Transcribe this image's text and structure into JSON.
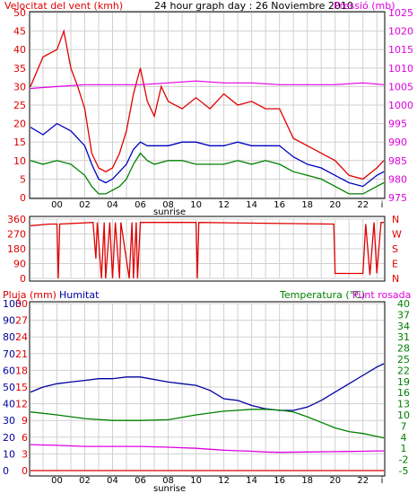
{
  "header": {
    "wind_label": "Velocitat del vent (kmh)",
    "title": "24 hour graph day : 26 Noviembre 2010",
    "pressure_label": "Pressió (mb)"
  },
  "bottom_header": {
    "rain_label": "Pluja (mm)",
    "humidity_label": "Humitat",
    "temp_label": "Temperatura (°C)",
    "dew_label": "Punt rosada"
  },
  "time_axis": {
    "ticks": [
      "00",
      "02",
      "04",
      "06",
      "08",
      "10",
      "12",
      "14",
      "16",
      "18",
      "20",
      "22"
    ],
    "sunrise_label": "sunrise"
  },
  "colors": {
    "wind_gust": "#e00000",
    "wind_avg": "#0000c0",
    "wind_low": "#008000",
    "pressure": "#e000e0",
    "direction": "#e00000",
    "humidity": "#0000a0",
    "temperature": "#008000",
    "dew_point": "#e000e0",
    "rain": "#e00000"
  },
  "chart_data": [
    {
      "type": "line",
      "title": "24 hour graph day : 26 Noviembre 2010",
      "x_ticks": [
        "00",
        "02",
        "04",
        "06",
        "08",
        "10",
        "12",
        "14",
        "16",
        "18",
        "20",
        "22"
      ],
      "x_range": [
        -1.9,
        23.5
      ],
      "left_axis": {
        "label": "Velocitat del vent (kmh)",
        "ticks": [
          0,
          5,
          10,
          15,
          20,
          25,
          30,
          35,
          40,
          45,
          50
        ],
        "range": [
          0,
          50
        ]
      },
      "right_axis": {
        "label": "Pressió (mb)",
        "ticks": [
          975,
          980,
          985,
          990,
          995,
          1000,
          1005,
          1010,
          1015,
          1020,
          1025
        ],
        "range": [
          975,
          1025
        ]
      },
      "series": [
        {
          "name": "Velocitat del vent (kmh)",
          "axis": "left",
          "color": "#e00000",
          "x": [
            -1.9,
            -1,
            0,
            0.5,
            1,
            1.5,
            2,
            2.5,
            3,
            3.5,
            4,
            4.5,
            5,
            5.5,
            6,
            6.5,
            7,
            7.5,
            8,
            9,
            10,
            11,
            12,
            13,
            14,
            15,
            16,
            17,
            18,
            19,
            20,
            21,
            22,
            23,
            23.5
          ],
          "y": [
            30,
            38,
            40,
            45,
            35,
            30,
            24,
            12,
            8,
            7,
            8,
            12,
            18,
            28,
            35,
            26,
            22,
            30,
            26,
            24,
            27,
            24,
            28,
            25,
            26,
            24,
            24,
            16,
            14,
            12,
            10,
            6,
            5,
            8,
            10
          ]
        },
        {
          "name": "",
          "axis": "left",
          "color": "#0000c0",
          "x": [
            -1.9,
            -1,
            0,
            1,
            2,
            2.5,
            3,
            3.5,
            4,
            4.5,
            5,
            5.5,
            6,
            6.5,
            7,
            8,
            9,
            10,
            11,
            12,
            13,
            14,
            15,
            16,
            17,
            18,
            19,
            20,
            21,
            22,
            23,
            23.5
          ],
          "y": [
            19,
            17,
            20,
            18,
            14,
            9,
            5,
            4,
            5,
            7,
            9,
            13,
            15,
            14,
            14,
            14,
            15,
            15,
            14,
            14,
            15,
            14,
            14,
            14,
            11,
            9,
            8,
            6,
            4,
            3,
            6,
            7
          ]
        },
        {
          "name": "",
          "axis": "left",
          "color": "#008000",
          "x": [
            -1.9,
            -1,
            0,
            1,
            2,
            2.5,
            3,
            3.5,
            4,
            4.5,
            5,
            5.5,
            6,
            6.5,
            7,
            8,
            9,
            10,
            11,
            12,
            13,
            14,
            15,
            16,
            17,
            18,
            19,
            20,
            21,
            22,
            23,
            23.5
          ],
          "y": [
            10,
            9,
            10,
            9,
            6,
            3,
            1,
            1,
            2,
            3,
            5,
            9,
            12,
            10,
            9,
            10,
            10,
            9,
            9,
            9,
            10,
            9,
            10,
            9,
            7,
            6,
            5,
            3,
            1,
            1,
            3,
            4
          ]
        },
        {
          "name": "Pressió (mb)",
          "axis": "right",
          "color": "#e000e0",
          "x": [
            -1.9,
            0,
            2,
            4,
            6,
            8,
            10,
            12,
            14,
            16,
            18,
            20,
            22,
            23.5
          ],
          "y": [
            1004.5,
            1005,
            1005.5,
            1005.5,
            1005.5,
            1006,
            1006.5,
            1006,
            1006,
            1005.5,
            1005.5,
            1005.5,
            1006,
            1005.5
          ]
        }
      ]
    },
    {
      "type": "line",
      "x_ticks": [
        "00",
        "02",
        "04",
        "06",
        "08",
        "10",
        "12",
        "14",
        "16",
        "18",
        "20",
        "22"
      ],
      "x_range": [
        -1.9,
        23.5
      ],
      "left_axis": {
        "ticks": [
          0,
          90,
          180,
          270,
          360
        ],
        "range": [
          0,
          360
        ]
      },
      "right_axis": {
        "ticks": [
          "N",
          "W",
          "S",
          "E",
          "N"
        ]
      },
      "series": [
        {
          "name": "",
          "color": "#e00000",
          "x": [
            -1.9,
            -0.5,
            0,
            0.1,
            0.2,
            2.6,
            2.8,
            2.9,
            3.2,
            3.4,
            3.5,
            3.8,
            4,
            4.2,
            4.5,
            4.6,
            5.2,
            5.4,
            5.5,
            5.7,
            5.8,
            6,
            10,
            10.1,
            10.2,
            19.8,
            19.9,
            20,
            20.1,
            21.8,
            22,
            22.2,
            22.5,
            22.8,
            23,
            23.3,
            23.5
          ],
          "y": [
            320,
            330,
            330,
            0,
            330,
            340,
            120,
            340,
            0,
            340,
            0,
            340,
            0,
            340,
            0,
            340,
            0,
            340,
            0,
            340,
            0,
            340,
            340,
            0,
            340,
            330,
            330,
            30,
            30,
            30,
            30,
            330,
            20,
            340,
            30,
            340,
            340
          ]
        }
      ]
    },
    {
      "type": "line",
      "x_ticks": [
        "00",
        "02",
        "04",
        "06",
        "08",
        "10",
        "12",
        "14",
        "16",
        "18",
        "20",
        "22"
      ],
      "x_range": [
        -1.9,
        23.5
      ],
      "axes": {
        "rain": {
          "label": "Pluja (mm)",
          "ticks": [
            0,
            3,
            6,
            9,
            12,
            15,
            18,
            21,
            24,
            27,
            30
          ],
          "range": [
            0,
            30
          ]
        },
        "humidity": {
          "label": "Humitat",
          "ticks": [
            0,
            10,
            20,
            30,
            40,
            50,
            60,
            70,
            80,
            90,
            100
          ],
          "range": [
            0,
            100
          ]
        },
        "temperature": {
          "label": "Temperatura (°C)",
          "ticks": [
            -5,
            -2,
            1,
            4,
            7,
            10,
            13,
            16,
            19,
            22,
            25,
            28,
            31,
            34,
            37,
            40
          ],
          "range": [
            -5,
            40
          ]
        }
      },
      "series": [
        {
          "name": "Humitat",
          "axis": "humidity",
          "color": "#0000a0",
          "x": [
            -1.9,
            -1,
            0,
            1,
            2,
            3,
            4,
            5,
            6,
            8,
            9,
            10,
            11,
            12,
            13,
            14,
            15,
            16,
            17,
            18,
            19,
            20,
            21,
            22,
            23,
            23.5
          ],
          "y": [
            47,
            50,
            52,
            53,
            54,
            55,
            55,
            56,
            56,
            53,
            52,
            51,
            48,
            43,
            42,
            39,
            37,
            36,
            36,
            38,
            42,
            47,
            52,
            57,
            62,
            64
          ]
        },
        {
          "name": "Temperatura (°C)",
          "axis": "temperature",
          "color": "#008000",
          "x": [
            -1.9,
            0,
            2,
            4,
            6,
            8,
            10,
            12,
            14,
            15,
            16,
            17,
            18,
            19,
            20,
            21,
            22,
            23,
            23.5
          ],
          "y": [
            10.8,
            10,
            9,
            8.5,
            8.5,
            8.7,
            10,
            11,
            11.5,
            11.5,
            11.3,
            10.8,
            9.5,
            8,
            6.5,
            5.5,
            5,
            4.2,
            3.8
          ]
        },
        {
          "name": "Punt rosada",
          "axis": "temperature",
          "color": "#e000e0",
          "x": [
            -1.9,
            0,
            2,
            4,
            6,
            8,
            10,
            12,
            14,
            15,
            16,
            18,
            20,
            22,
            23,
            23.5
          ],
          "y": [
            2,
            1.8,
            1.5,
            1.5,
            1.5,
            1.3,
            1,
            0.5,
            0.2,
            0,
            -0.1,
            0,
            0.1,
            0.2,
            0.3,
            0.3
          ]
        },
        {
          "name": "Pluja (mm)",
          "axis": "rain",
          "color": "#e00000",
          "x": [
            -1.9,
            23.5
          ],
          "y": [
            0,
            0
          ]
        }
      ]
    }
  ]
}
